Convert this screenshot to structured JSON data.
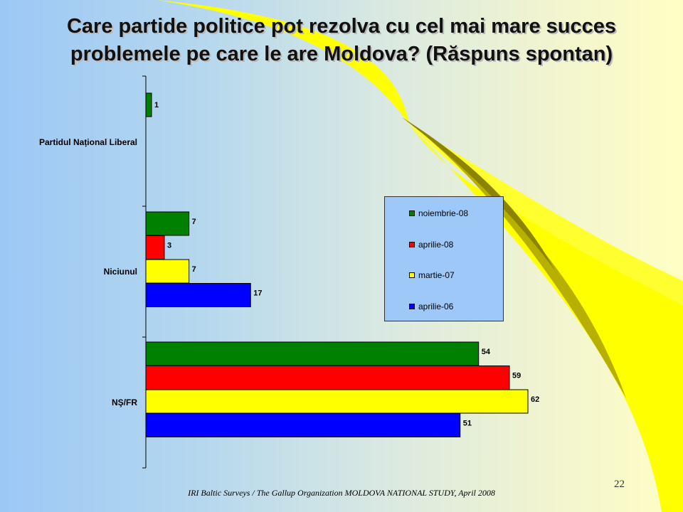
{
  "slide": {
    "title_line1": "Care partide politice pot rezolva cu cel mai mare succes",
    "title_line2": "problemele pe care le are Moldova? (Răspuns spontan)",
    "footer": "IRI  Baltic Surveys / The Gallup Organization  MOLDOVA  NATIONAL  STUDY, April 2008",
    "page_number": "22"
  },
  "colors": {
    "noiembrie-08": "#008000",
    "aprilie-08": "#ff0000",
    "martie-07": "#ffff00",
    "aprilie-06": "#0000ff"
  },
  "chart_data": {
    "type": "bar",
    "orientation": "horizontal",
    "title": "",
    "xlabel": "",
    "ylabel": "",
    "categories": [
      "Partidul Național Liberal",
      "Niciunul",
      "NŞ/FR"
    ],
    "series": [
      {
        "name": "noiembrie-08",
        "values": [
          1,
          7,
          54
        ]
      },
      {
        "name": "aprilie-08",
        "values": [
          null,
          3,
          59
        ]
      },
      {
        "name": "martie-07",
        "values": [
          null,
          7,
          62
        ]
      },
      {
        "name": "aprilie-06",
        "values": [
          null,
          17,
          51
        ]
      }
    ],
    "xlim": [
      0,
      62
    ],
    "grid": false,
    "legend_position": "center-right"
  }
}
